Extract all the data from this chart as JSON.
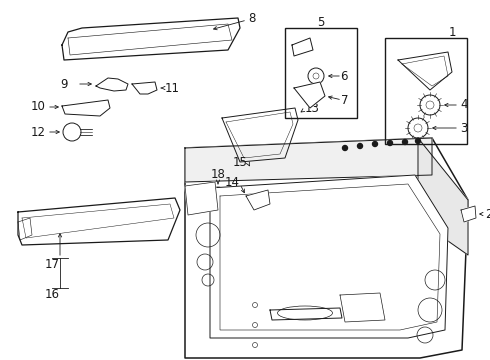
{
  "bg": "#ffffff",
  "lc": "#1a1a1a",
  "lw": 0.7,
  "fs": 8.5,
  "fig_w": 4.9,
  "fig_h": 3.6,
  "dpi": 100
}
